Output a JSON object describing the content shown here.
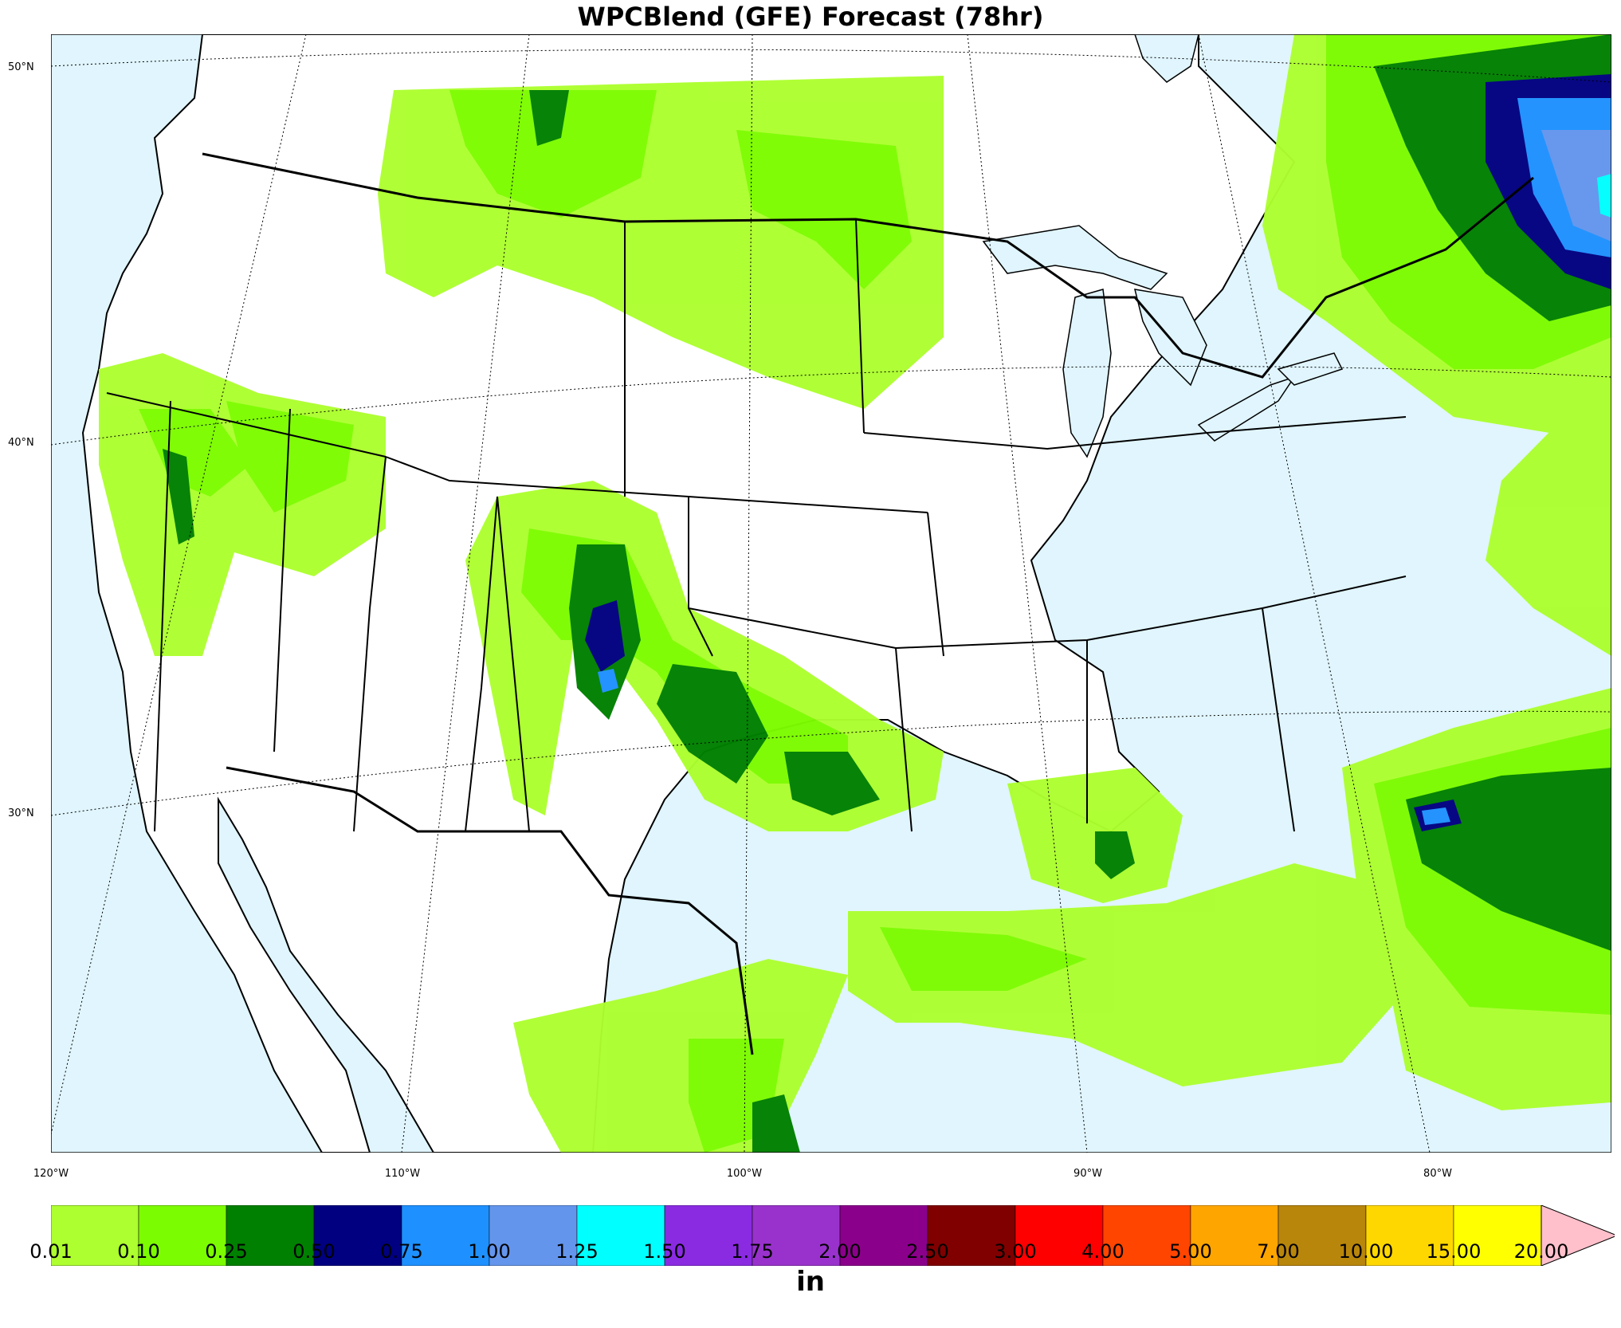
{
  "title": "WPCBlend (GFE) Forecast (78hr)",
  "lat_labels": [
    "50°N",
    "40°N",
    "30°N"
  ],
  "lon_labels": [
    "120°W",
    "110°W",
    "100°W",
    "90°W",
    "80°W"
  ],
  "colorbar": {
    "unit": "in",
    "levels": [
      "0.01",
      "0.10",
      "0.25",
      "0.50",
      "0.75",
      "1.00",
      "1.25",
      "1.50",
      "1.75",
      "2.00",
      "2.50",
      "3.00",
      "4.00",
      "5.00",
      "7.00",
      "10.00",
      "15.00",
      "20.00"
    ],
    "colors": [
      "#adff2f",
      "#7cfc00",
      "#008000",
      "#000080",
      "#1e90ff",
      "#6495ed",
      "#00ffff",
      "#8a2be2",
      "#9932cc",
      "#8b008b",
      "#800000",
      "#ff0000",
      "#ff4500",
      "#ffa500",
      "#b8860b",
      "#ffd700",
      "#ffff00"
    ],
    "extend_color": "#ffc0cb"
  },
  "map_colors": {
    "water": "#e0f5fd",
    "land": "#ffffff"
  }
}
